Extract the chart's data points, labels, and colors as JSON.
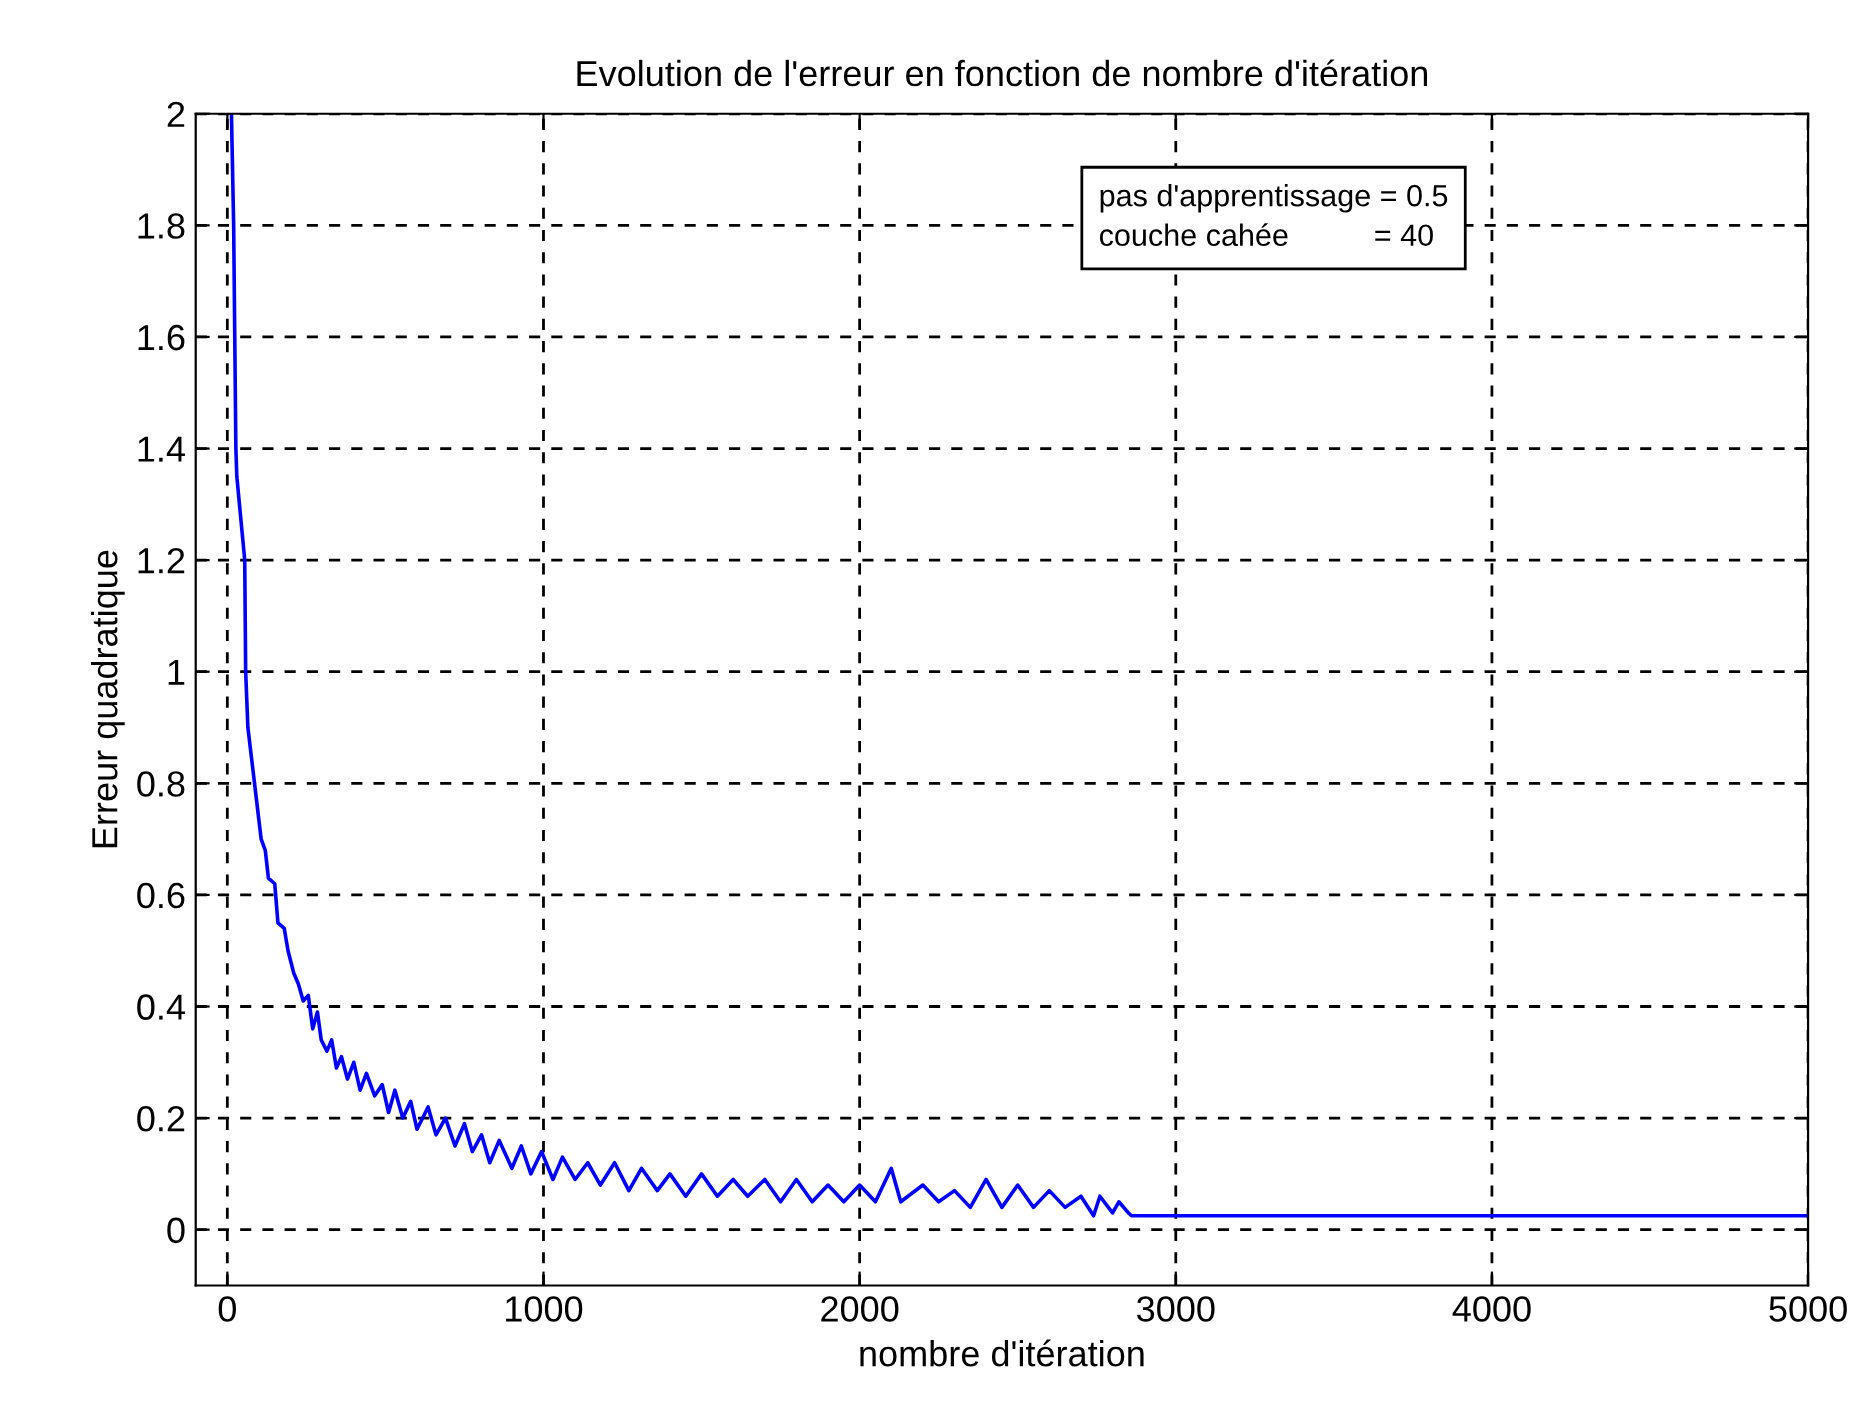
{
  "chart_data": {
    "type": "line",
    "title": "Evolution de l'erreur en fonction de nombre d'itération",
    "xlabel": "nombre d'itération",
    "ylabel": "Erreur quadratique",
    "annotations": [
      "pas d'apprentissage = 0.5\ncouche cahée          = 40"
    ],
    "xlim": [
      -100,
      5000
    ],
    "xticks": [
      0,
      1000,
      2000,
      3000,
      4000,
      5000
    ],
    "ylim": [
      -0.1,
      2
    ],
    "yticks": [
      0,
      0.2,
      0.4,
      0.6,
      0.8,
      1,
      1.2,
      1.4,
      1.6,
      1.8,
      2
    ],
    "grid": true,
    "marker": "none",
    "line_style": "solid",
    "series": [
      {
        "color": "#0000ff",
        "x": [
          13,
          20,
          27,
          30,
          55,
          58,
          65,
          86,
          107,
          120,
          130,
          150,
          160,
          180,
          192,
          210,
          225,
          240,
          256,
          270,
          285,
          297,
          315,
          330,
          345,
          361,
          380,
          400,
          420,
          440,
          466,
          490,
          510,
          530,
          555,
          580,
          600,
          635,
          660,
          690,
          720,
          750,
          775,
          804,
          830,
          860,
          900,
          930,
          960,
          994,
          1030,
          1060,
          1100,
          1140,
          1180,
          1225,
          1270,
          1310,
          1360,
          1400,
          1450,
          1500,
          1550,
          1600,
          1646,
          1700,
          1750,
          1800,
          1850,
          1900,
          1950,
          2000,
          2050,
          2100,
          2130,
          2200,
          2250,
          2300,
          2350,
          2400,
          2450,
          2500,
          2550,
          2600,
          2650,
          2700,
          2740,
          2760,
          2800,
          2820,
          2850,
          2860,
          5000
        ],
        "values": [
          2.0,
          1.8,
          1.4,
          1.35,
          1.2,
          1.0,
          0.9,
          0.8,
          0.7,
          0.68,
          0.63,
          0.62,
          0.55,
          0.54,
          0.5,
          0.46,
          0.44,
          0.41,
          0.42,
          0.36,
          0.39,
          0.34,
          0.32,
          0.34,
          0.29,
          0.31,
          0.27,
          0.3,
          0.25,
          0.28,
          0.24,
          0.26,
          0.21,
          0.25,
          0.2,
          0.23,
          0.18,
          0.22,
          0.17,
          0.2,
          0.15,
          0.19,
          0.14,
          0.17,
          0.12,
          0.16,
          0.11,
          0.15,
          0.1,
          0.14,
          0.09,
          0.13,
          0.09,
          0.12,
          0.08,
          0.12,
          0.07,
          0.11,
          0.07,
          0.1,
          0.06,
          0.1,
          0.06,
          0.09,
          0.06,
          0.09,
          0.05,
          0.09,
          0.05,
          0.08,
          0.05,
          0.08,
          0.05,
          0.11,
          0.05,
          0.08,
          0.05,
          0.07,
          0.04,
          0.09,
          0.04,
          0.08,
          0.04,
          0.07,
          0.04,
          0.06,
          0.025,
          0.06,
          0.03,
          0.05,
          0.03,
          0.025,
          0.025
        ]
      }
    ]
  }
}
